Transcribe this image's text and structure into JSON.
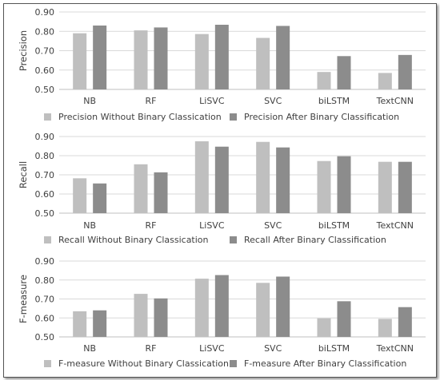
{
  "colors": {
    "without": "#bfbfbf",
    "after": "#8c8c8c",
    "grid": "#d9d9d9",
    "text": "#404040"
  },
  "chart_data": [
    {
      "type": "bar",
      "ylabel": "Precision",
      "ylim": [
        0.5,
        0.9
      ],
      "yticks": [
        "0.90",
        "0.80",
        "0.70",
        "0.60",
        "0.50"
      ],
      "categories": [
        "NB",
        "RF",
        "LiSVC",
        "SVC",
        "biLSTM",
        "TextCNN"
      ],
      "series": [
        {
          "name": "Precision Without Binary Classication",
          "values": [
            0.79,
            0.805,
            0.786,
            0.766,
            0.59,
            0.585
          ]
        },
        {
          "name": "Precision After Binary Classification",
          "values": [
            0.83,
            0.82,
            0.834,
            0.828,
            0.672,
            0.678
          ]
        }
      ],
      "legend": "bottom"
    },
    {
      "type": "bar",
      "ylabel": "Recall",
      "ylim": [
        0.5,
        0.9
      ],
      "yticks": [
        "0.90",
        "0.80",
        "0.70",
        "0.60",
        "0.50"
      ],
      "categories": [
        "NB",
        "RF",
        "LiSVC",
        "SVC",
        "biLSTM",
        "TextCNN"
      ],
      "series": [
        {
          "name": "Recall Without Binary Classication",
          "values": [
            0.682,
            0.755,
            0.875,
            0.872,
            0.772,
            0.768
          ]
        },
        {
          "name": "Recall After Binary Classification",
          "values": [
            0.655,
            0.713,
            0.847,
            0.843,
            0.797,
            0.768
          ]
        }
      ],
      "legend": "bottom"
    },
    {
      "type": "bar",
      "ylabel": "F-measure",
      "ylim": [
        0.5,
        0.9
      ],
      "yticks": [
        "0.90",
        "0.80",
        "0.70",
        "0.60",
        "0.50"
      ],
      "categories": [
        "NB",
        "RF",
        "LiSVC",
        "SVC",
        "biLSTM",
        "TextCNN"
      ],
      "series": [
        {
          "name": "F-measure Without Binary Classication",
          "values": [
            0.635,
            0.727,
            0.807,
            0.785,
            0.598,
            0.595
          ]
        },
        {
          "name": "F-measure After Binary Classification",
          "values": [
            0.64,
            0.703,
            0.826,
            0.818,
            0.688,
            0.657
          ]
        }
      ],
      "legend": "bottom"
    }
  ]
}
